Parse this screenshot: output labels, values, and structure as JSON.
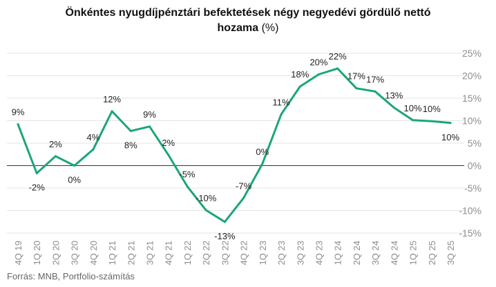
{
  "chart_data": {
    "type": "line",
    "title_main": "Önkéntes nyugdíjpénztári befektetések négy negyedévi gördülő nettó",
    "title_line2": "hozama",
    "title_unit": "(%)",
    "source": "Forrás: MNB, Portfolio-számítás",
    "categories": [
      "4Q 19",
      "1Q 20",
      "2Q 20",
      "3Q 20",
      "4Q 20",
      "1Q 21",
      "2Q 21",
      "3Q 21",
      "4Q 21",
      "1Q 22",
      "2Q 22",
      "3Q 22",
      "4Q 22",
      "1Q 23",
      "2Q 23",
      "3Q 23",
      "4Q 23",
      "1Q 24",
      "2Q 24",
      "3Q 24",
      "4Q 24",
      "1Q 25",
      "2Q 25",
      "3Q 25"
    ],
    "values": [
      9.2,
      -1.7,
      2.1,
      0.0,
      3.6,
      12.1,
      7.7,
      8.7,
      2.4,
      -4.6,
      -9.9,
      -12.5,
      -7.2,
      0.4,
      11.4,
      17.6,
      20.3,
      21.6,
      17.2,
      16.5,
      12.9,
      10.1,
      9.9,
      9.5
    ],
    "data_labels": [
      "9%",
      "-2%",
      "2%",
      "0%",
      "4%",
      "12%",
      "8%",
      "9%",
      "2%",
      "-5%",
      "-10%",
      "-13%",
      "-7%",
      "0%",
      "11%",
      "18%",
      "20%",
      "22%",
      "17%",
      "17%",
      "13%",
      "10%",
      "10%",
      "10%"
    ],
    "y_ticks": [
      "25%",
      "20%",
      "15%",
      "10%",
      "5%",
      "0%",
      "-5%",
      "-10%",
      "-15%"
    ],
    "ylim": [
      -15,
      25
    ],
    "y_axis_side": "right",
    "grid": true,
    "legend": false,
    "colors": {
      "line": "#1aa57c",
      "grid": "#e4e4e4",
      "zero": "#333333",
      "tick_text": "#8c8c8c",
      "label_text": "#222222"
    }
  }
}
